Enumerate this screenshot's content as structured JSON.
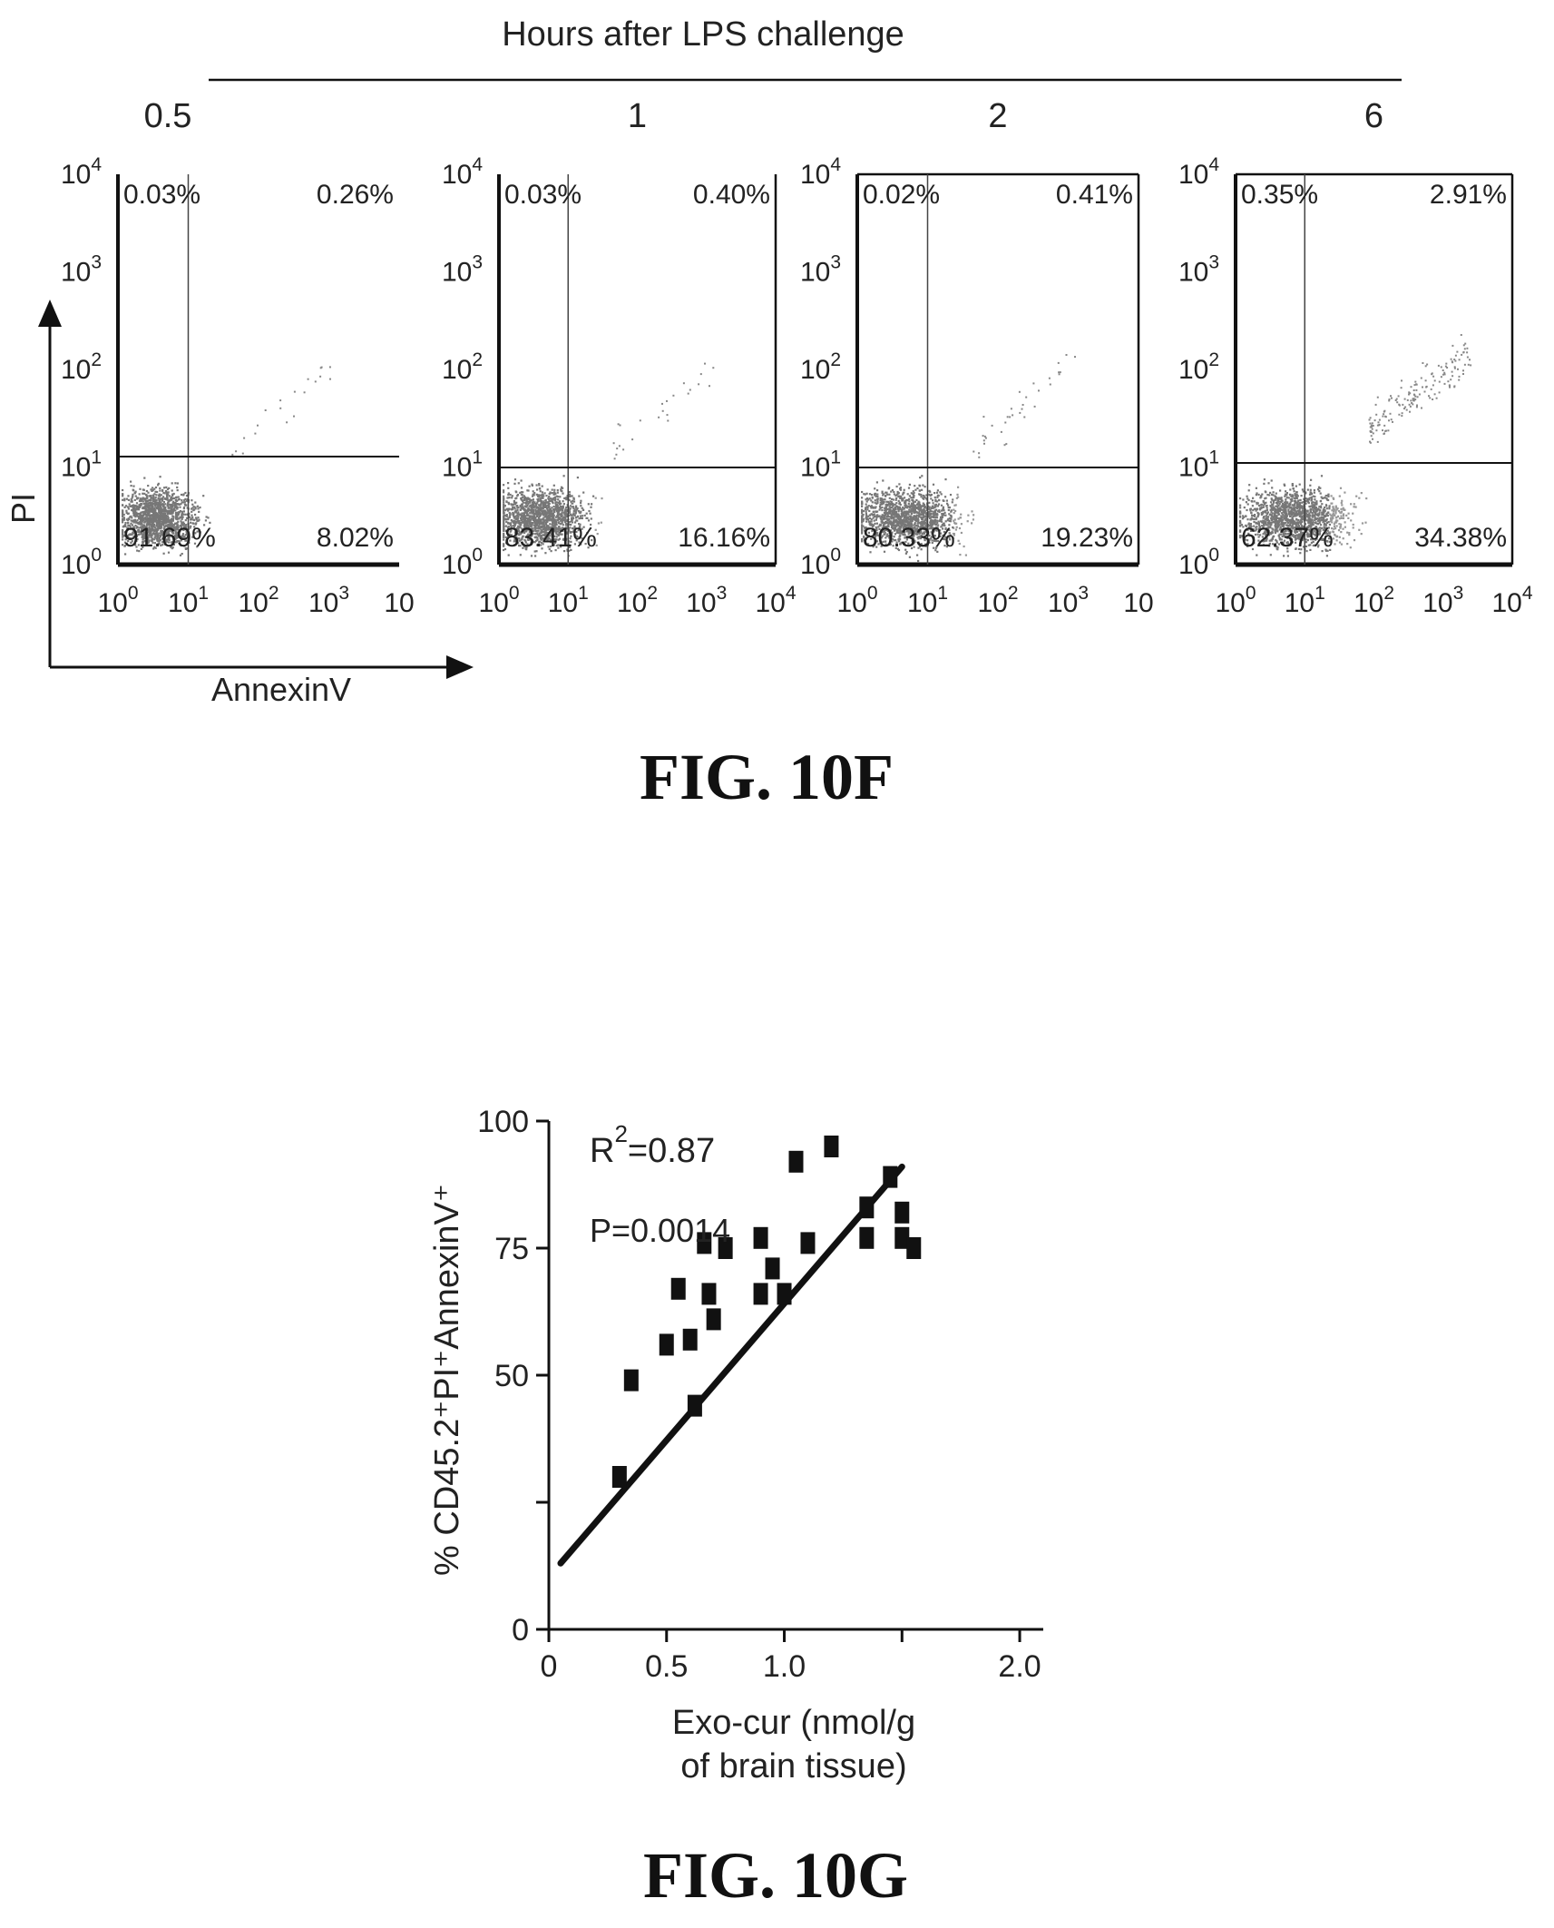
{
  "figure_f": {
    "header": "Hours after LPS challenge",
    "caption": "FIG. 10F",
    "y_axis_label": "PI",
    "x_axis_label": "AnnexinV",
    "tick_labels": [
      "0",
      "1",
      "2",
      "3",
      "4"
    ],
    "tick_base": "10"
  },
  "figure_g": {
    "caption": "FIG. 10G",
    "r2_label": "R",
    "r2_sup": "2",
    "r2_value": "=0.87",
    "p_label": "P=0.0014"
  },
  "chart_data": [
    {
      "type": "scatter",
      "subtype": "flow-cytometry-quadrant",
      "title": "0.5",
      "xlabel": "AnnexinV",
      "ylabel": "PI",
      "xscale": "log",
      "yscale": "log",
      "xlim": [
        1,
        10000
      ],
      "ylim": [
        1,
        10000
      ],
      "gate_x": 10,
      "gate_y": 10,
      "quadrants": {
        "upper_left": "0.03%",
        "upper_right": "0.26%",
        "lower_left": "91.69%",
        "lower_right": "8.02%"
      },
      "x_tick_labels": [
        "10^0",
        "10^1",
        "10^2",
        "10^3",
        "10"
      ],
      "y_tick_labels": [
        "10^0",
        "10^1",
        "10^2",
        "10^3",
        "10^4"
      ]
    },
    {
      "type": "scatter",
      "subtype": "flow-cytometry-quadrant",
      "title": "1",
      "xscale": "log",
      "yscale": "log",
      "xlim": [
        1,
        10000
      ],
      "ylim": [
        1,
        10000
      ],
      "gate_x": 10,
      "gate_y": 10,
      "quadrants": {
        "upper_left": "0.03%",
        "upper_right": "0.40%",
        "lower_left": "83.41%",
        "lower_right": "16.16%"
      },
      "x_tick_labels": [
        "10^0",
        "10^1",
        "10^2",
        "10^3",
        "10^4"
      ],
      "y_tick_labels": [
        "10^0",
        "10^1",
        "10^2",
        "10^3",
        "10^4"
      ]
    },
    {
      "type": "scatter",
      "subtype": "flow-cytometry-quadrant",
      "title": "2",
      "xscale": "log",
      "yscale": "log",
      "xlim": [
        1,
        10000
      ],
      "ylim": [
        1,
        10000
      ],
      "gate_x": 10,
      "gate_y": 10,
      "quadrants": {
        "upper_left": "0.02%",
        "upper_right": "0.41%",
        "lower_left": "80.33%",
        "lower_right": "19.23%"
      },
      "x_tick_labels": [
        "10^0",
        "10^1",
        "10^2",
        "10^3",
        "10"
      ],
      "y_tick_labels": [
        "10^0",
        "10^1",
        "10^2",
        "10^3",
        "10^4"
      ]
    },
    {
      "type": "scatter",
      "subtype": "flow-cytometry-quadrant",
      "title": "6",
      "xscale": "log",
      "yscale": "log",
      "xlim": [
        1,
        10000
      ],
      "ylim": [
        1,
        10000
      ],
      "gate_x": 10,
      "gate_y": 10,
      "quadrants": {
        "upper_left": "0.35%",
        "upper_right": "2.91%",
        "lower_left": "62.37%",
        "lower_right": "34.38%"
      },
      "x_tick_labels": [
        "10^0",
        "10^1",
        "10^2",
        "10^3",
        "10^4"
      ],
      "y_tick_labels": [
        "10^0",
        "10^1",
        "10^2",
        "10^3",
        "10^4"
      ]
    },
    {
      "type": "scatter",
      "title": "",
      "xlabel": "Exo-cur (nmol/g of brain tissue)",
      "xlabel_lines": [
        "Exo-cur (nmol/g",
        "of brain tissue)"
      ],
      "ylabel": "% CD45.2⁺PI⁺AnnexinV⁺",
      "xlim": [
        0,
        2.1
      ],
      "ylim": [
        0,
        100
      ],
      "xticks": [
        0,
        0.5,
        1.0,
        1.5,
        2.0
      ],
      "xtick_labels": [
        "0",
        "0.5",
        "1.0",
        "",
        "2.0"
      ],
      "yticks": [
        0,
        25,
        50,
        75,
        100
      ],
      "ytick_labels": [
        "0",
        "",
        "50",
        "75",
        "100"
      ],
      "x": [
        0.3,
        0.35,
        0.5,
        0.55,
        0.6,
        0.62,
        0.66,
        0.68,
        0.7,
        0.75,
        0.9,
        0.9,
        0.95,
        1.0,
        1.05,
        1.1,
        1.2,
        1.35,
        1.35,
        1.45,
        1.5,
        1.5,
        1.55
      ],
      "y": [
        30,
        49,
        56,
        67,
        57,
        44,
        76,
        66,
        61,
        75,
        66,
        77,
        71,
        66,
        92,
        76,
        95,
        83,
        77,
        89,
        77,
        82,
        75
      ],
      "regression": {
        "x": [
          0.05,
          1.5
        ],
        "y": [
          13,
          91
        ]
      },
      "annotations": [
        "R²=0.87",
        "P=0.0014"
      ]
    }
  ]
}
